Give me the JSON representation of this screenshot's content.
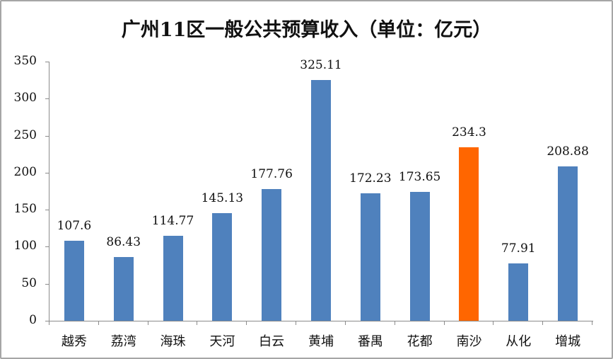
{
  "chart_data": {
    "type": "bar",
    "title": "广州11区一般公共预算收入（单位：亿元）",
    "xlabel": "",
    "ylabel": "",
    "categories": [
      "越秀",
      "荔湾",
      "海珠",
      "天河",
      "白云",
      "黄埔",
      "番禺",
      "花都",
      "南沙",
      "从化",
      "增城"
    ],
    "values": [
      107.6,
      86.43,
      114.77,
      145.13,
      177.76,
      325.11,
      172.23,
      173.65,
      234.3,
      77.91,
      208.88
    ],
    "value_labels": [
      "107.6",
      "86.43",
      "114.77",
      "145.13",
      "177.76",
      "325.11",
      "172.23",
      "173.65",
      "234.3",
      "77.91",
      "208.88"
    ],
    "bar_colors": [
      "#4f81bd",
      "#4f81bd",
      "#4f81bd",
      "#4f81bd",
      "#4f81bd",
      "#4f81bd",
      "#4f81bd",
      "#4f81bd",
      "#ff6600",
      "#4f81bd",
      "#4f81bd"
    ],
    "highlight_category": "南沙",
    "ylim": [
      0,
      350
    ],
    "yticks": [
      0,
      50,
      100,
      150,
      200,
      250,
      300,
      350
    ],
    "grid": false,
    "legend": "none"
  }
}
